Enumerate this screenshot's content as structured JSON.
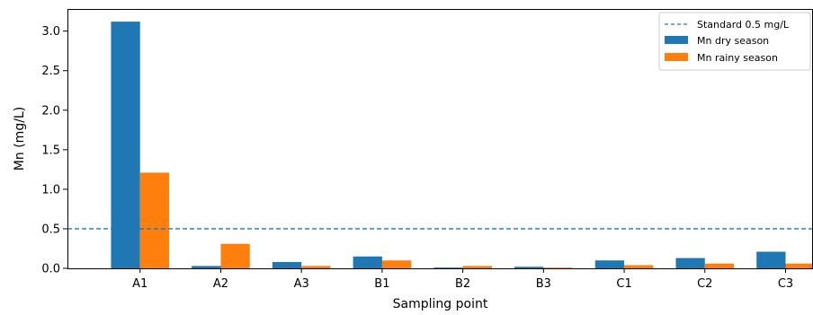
{
  "chart_data": {
    "type": "bar",
    "title": "",
    "xlabel": "Sampling point",
    "ylabel": "Mn (mg/L)",
    "categories": [
      "A1",
      "A2",
      "A3",
      "B1",
      "B2",
      "B3",
      "C1",
      "C2",
      "C3"
    ],
    "series": [
      {
        "name": "Mn dry season",
        "color": "#1f77b4",
        "values": [
          3.12,
          0.03,
          0.08,
          0.15,
          0.01,
          0.02,
          0.1,
          0.13,
          0.21
        ]
      },
      {
        "name": "Mn rainy season",
        "color": "#ff7f0e",
        "values": [
          1.21,
          0.31,
          0.03,
          0.1,
          0.03,
          0.01,
          0.04,
          0.06,
          0.06
        ]
      }
    ],
    "reference_line": {
      "name": "Standard 0.5 mg/L",
      "value": 0.5,
      "color": "#1f77b4",
      "style": "dashed"
    },
    "yticks": [
      0.0,
      0.5,
      1.0,
      1.5,
      2.0,
      2.5,
      3.0
    ],
    "ytick_labels": [
      "0.0",
      "0.5",
      "1.0",
      "1.5",
      "2.0",
      "2.5",
      "3.0"
    ],
    "ylim": [
      0,
      3.28
    ],
    "grid": false,
    "legend_position": "top-right"
  }
}
